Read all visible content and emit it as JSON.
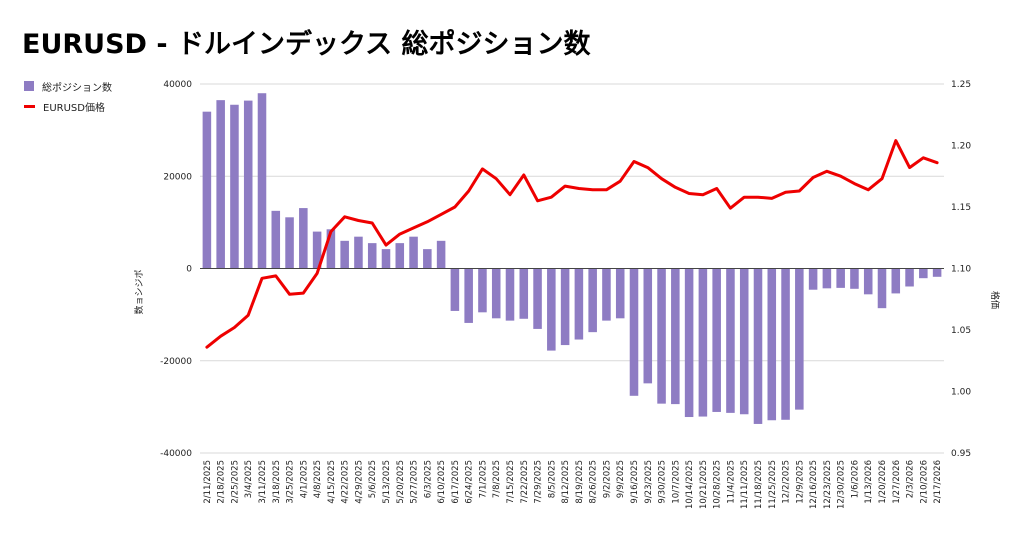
{
  "title": "EURUSD - ドルインデックス 総ポジション数",
  "legend": [
    {
      "label": "総ポジション数",
      "color": "#8e7cc3"
    },
    {
      "label": "EURUSD価格",
      "color": "#ee0000"
    }
  ],
  "chart_data": {
    "type": "bar",
    "title": "EURUSD - ドルインデックス 総ポジション数",
    "ylabel": "数ョシジポ",
    "y2label": "格価",
    "ylim": [
      -40000,
      40000
    ],
    "yticks": [
      -40000,
      -20000,
      0,
      20000,
      40000
    ],
    "y2lim": [
      0.95,
      1.25
    ],
    "y2ticks": [
      "0.95",
      "1.00",
      "1.05",
      "1.10",
      "1.15",
      "1.20",
      "1.25"
    ],
    "legend_position": "top-left",
    "grid": true,
    "categories": [
      "2/11/2025",
      "2/18/2025",
      "2/25/2025",
      "3/4/2025",
      "3/11/2025",
      "3/18/2025",
      "3/25/2025",
      "4/1/2025",
      "4/8/2025",
      "4/15/2025",
      "4/22/2025",
      "4/29/2025",
      "5/6/2025",
      "5/13/2025",
      "5/20/2025",
      "5/27/2025",
      "6/3/2025",
      "6/10/2025",
      "6/17/2025",
      "6/24/2025",
      "7/1/2025",
      "7/8/2025",
      "7/15/2025",
      "7/22/2025",
      "7/29/2025",
      "8/5/2025",
      "8/12/2025",
      "8/19/2025",
      "8/26/2025",
      "9/2/2025",
      "9/9/2025",
      "9/16/2025",
      "9/23/2025",
      "9/30/2025",
      "10/7/2025",
      "10/14/2025",
      "10/21/2025",
      "10/28/2025",
      "11/4/2025",
      "11/11/2025",
      "11/18/2025",
      "11/25/2025",
      "12/2/2025",
      "12/9/2025",
      "12/16/2025",
      "12/23/2025",
      "12/30/2025",
      "1/6/2026",
      "1/13/2026",
      "1/20/2026",
      "1/27/2026",
      "2/3/2026",
      "2/10/2026",
      "2/17/2026"
    ],
    "series": [
      {
        "name": "総ポジション数",
        "type": "bar",
        "axis": "left",
        "color": "#8e7cc3",
        "values": [
          34000,
          36500,
          35500,
          36400,
          38000,
          12500,
          11100,
          13100,
          8000,
          8500,
          6000,
          6900,
          5500,
          4200,
          5500,
          6900,
          4200,
          6000,
          -9200,
          -11800,
          -9500,
          -10800,
          -11300,
          -10900,
          -13100,
          -17800,
          -16600,
          -15400,
          -13800,
          -11300,
          -10800,
          -27600,
          -24900,
          -29300,
          -29400,
          -32200,
          -32100,
          -31100,
          -31300,
          -31600,
          -33700,
          -32900,
          -32800,
          -30600,
          -4600,
          -4300,
          -4200,
          -4400,
          -5600,
          -8600,
          -5400,
          -3900,
          -2100,
          -1800
        ]
      },
      {
        "name": "EURUSD価格",
        "type": "line",
        "axis": "right",
        "color": "#ee0000",
        "values": [
          1.036,
          1.045,
          1.052,
          1.062,
          1.092,
          1.094,
          1.079,
          1.08,
          1.096,
          1.13,
          1.142,
          1.139,
          1.137,
          1.119,
          1.128,
          1.133,
          1.138,
          1.144,
          1.15,
          1.163,
          1.181,
          1.173,
          1.16,
          1.176,
          1.155,
          1.158,
          1.167,
          1.165,
          1.164,
          1.164,
          1.171,
          1.187,
          1.182,
          1.173,
          1.166,
          1.161,
          1.16,
          1.165,
          1.149,
          1.158,
          1.158,
          1.157,
          1.162,
          1.163,
          1.174,
          1.179,
          1.175,
          1.169,
          1.164,
          1.173,
          1.204,
          1.182,
          1.19,
          1.186
        ]
      }
    ]
  }
}
